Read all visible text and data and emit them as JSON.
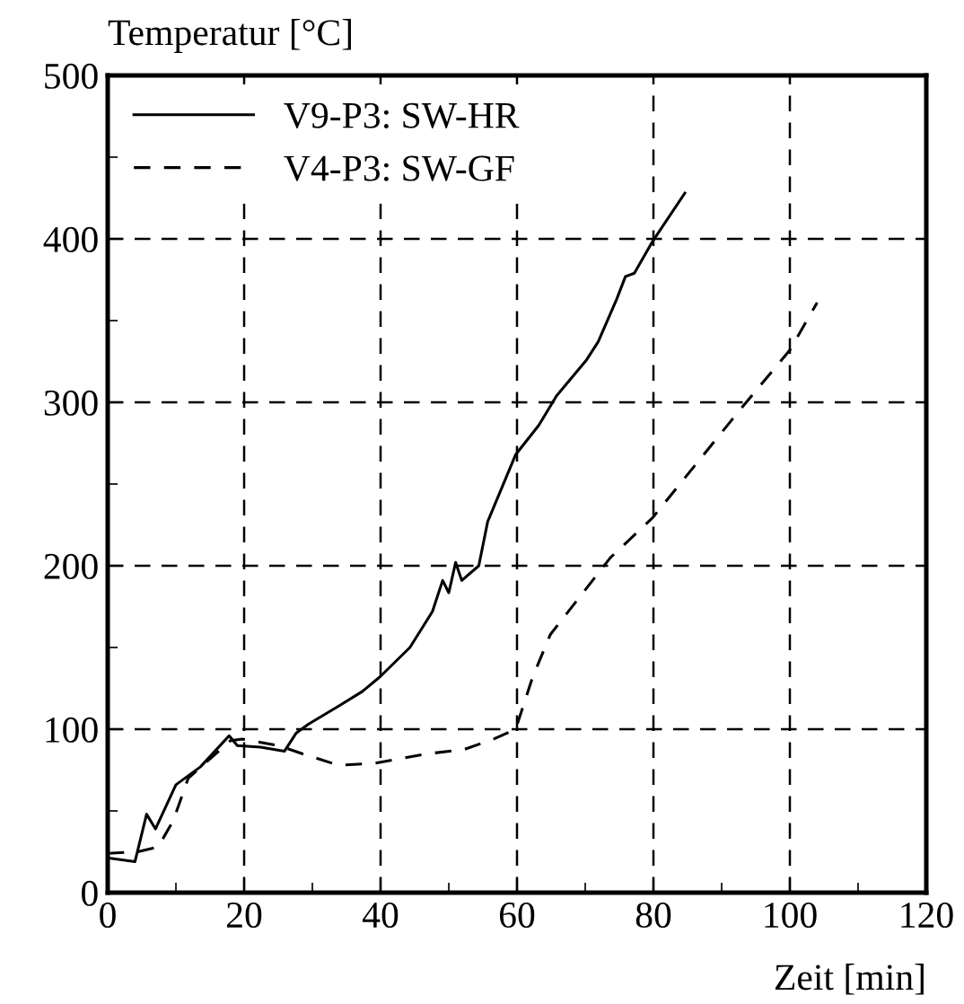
{
  "chart_data": {
    "type": "line",
    "ylabel": "Temperatur [°C]",
    "xlabel": "Zeit [min]",
    "xlim": [
      0,
      120
    ],
    "xticks": [
      0,
      20,
      40,
      60,
      80,
      100,
      120
    ],
    "ylim": [
      0,
      500
    ],
    "yticks": [
      0,
      100,
      200,
      300,
      400,
      500
    ],
    "grid": true,
    "legend": "top left",
    "series": [
      {
        "name": "V9-P3: SW-HR",
        "color": "#000000",
        "line_style": "solid",
        "x": [
          0.4,
          4,
          5.7,
          7,
          10,
          13.6,
          17.8,
          19,
          22.4,
          25.9,
          27.6,
          29.4,
          33.8,
          37.3,
          39.9,
          44.3,
          47.6,
          49.1,
          50,
          51,
          51.9,
          54.4,
          55.7,
          57.9,
          59.8,
          63.2,
          65.8,
          70.2,
          71.9,
          74.6,
          75.9,
          77.2,
          79.8,
          84.6
        ],
        "values": [
          21,
          19,
          48,
          39,
          66,
          77,
          96,
          90,
          89,
          86.5,
          97.5,
          103,
          114,
          123,
          132,
          150,
          172,
          191,
          183.5,
          202,
          191,
          200,
          227,
          249,
          268,
          286,
          304,
          326,
          337,
          363,
          377,
          379,
          398,
          428
        ]
      },
      {
        "name": "V4-P3: SW-GF",
        "color": "#000000",
        "line_style": "dashed",
        "x": [
          0,
          4.4,
          7.4,
          9.6,
          11.8,
          18,
          19.7,
          25,
          28.5,
          33.8,
          39,
          46.9,
          52.2,
          56.6,
          59.8,
          62.3,
          64.9,
          73.7,
          79.8,
          93,
          100,
          104
        ],
        "values": [
          24,
          25,
          28,
          44,
          70,
          93,
          94,
          90,
          85,
          78,
          79,
          85,
          87.5,
          94,
          100,
          132,
          158,
          205,
          229,
          297,
          332,
          361
        ]
      }
    ]
  }
}
